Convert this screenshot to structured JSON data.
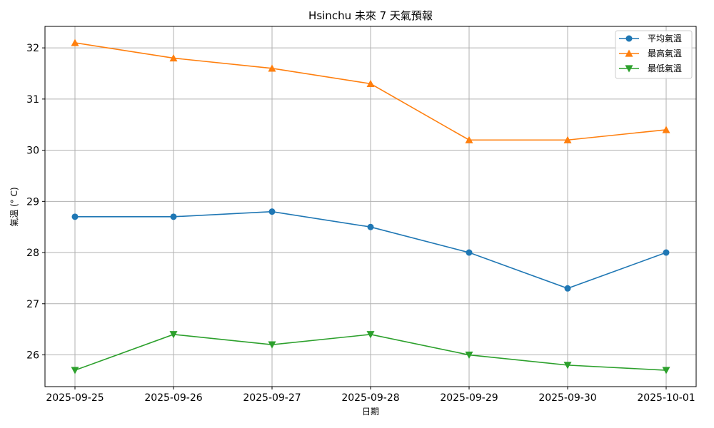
{
  "chart_data": {
    "type": "line",
    "title": "Hsinchu 未來 7 天氣預報",
    "xlabel": "日期",
    "ylabel": "氣溫 (° C)",
    "categories": [
      "2025-09-25",
      "2025-09-26",
      "2025-09-27",
      "2025-09-28",
      "2025-09-29",
      "2025-09-30",
      "2025-10-01"
    ],
    "yticks": [
      26,
      27,
      28,
      29,
      30,
      31,
      32
    ],
    "ylim": [
      25.38,
      32.42
    ],
    "grid": true,
    "legend_position": "top-right",
    "series": [
      {
        "name": "平均氣溫",
        "color": "#1f77b4",
        "marker": "circle",
        "values": [
          28.7,
          28.7,
          28.8,
          28.5,
          28.0,
          27.3,
          28.0
        ]
      },
      {
        "name": "最高氣溫",
        "color": "#ff7f0e",
        "marker": "triangle-up",
        "values": [
          32.1,
          31.8,
          31.6,
          31.3,
          30.2,
          30.2,
          30.4
        ]
      },
      {
        "name": "最低氣溫",
        "color": "#2ca02c",
        "marker": "triangle-down",
        "values": [
          25.7,
          26.4,
          26.2,
          26.4,
          26.0,
          25.8,
          25.7
        ]
      }
    ]
  }
}
